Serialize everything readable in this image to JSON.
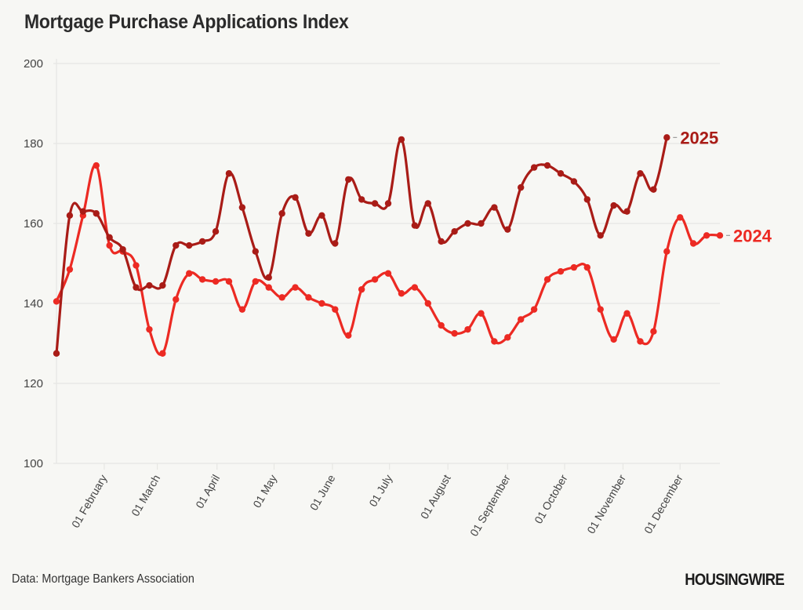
{
  "title": "Mortgage Purchase Applications Index",
  "source": "Data: Mortgage Bankers Association",
  "logo": "HOUSINGWIRE",
  "colors": {
    "series_2025": "#a91c17",
    "series_2024": "#ec2a23",
    "background": "#f7f7f4",
    "grid": "#e6e6e3"
  },
  "chart_data": {
    "type": "line",
    "title": "Mortgage Purchase Applications Index",
    "xlabel": "",
    "ylabel": "",
    "ylim": [
      100,
      200
    ],
    "yticks": [
      100,
      120,
      140,
      160,
      180,
      200
    ],
    "x_week_range": [
      1,
      51
    ],
    "xtick_labels": [
      "01 February",
      "01 March",
      "01 April",
      "01 May",
      "01 June",
      "01 July",
      "01 August",
      "01 September",
      "01 October",
      "01 November",
      "01 December"
    ],
    "xtick_weeks": [
      4.6,
      8.6,
      13.1,
      17.4,
      21.8,
      26.1,
      30.5,
      35,
      39.3,
      43.7,
      48
    ],
    "grid": true,
    "legend": "end-of-line labels",
    "series": [
      {
        "name": "2025",
        "color": "#a91c17",
        "values": [
          127.5,
          162,
          163,
          162.5,
          156.5,
          153.5,
          144,
          144.5,
          144.5,
          154.5,
          154.5,
          155.5,
          158,
          172.5,
          164,
          153,
          146.5,
          162.5,
          166.5,
          157.5,
          162,
          155,
          171,
          166,
          165,
          165,
          181,
          159.5,
          165,
          155.5,
          158,
          160,
          160,
          164,
          158.5,
          169,
          174,
          174.5,
          172.5,
          170.5,
          166,
          157,
          164.5,
          163,
          172.5,
          168.5,
          181.5
        ]
      },
      {
        "name": "2024",
        "color": "#ec2a23",
        "values": [
          140.5,
          148.5,
          162,
          174.5,
          154.5,
          153,
          149.5,
          133.5,
          127.5,
          141,
          147.5,
          146,
          145.5,
          145.5,
          138.5,
          145.5,
          144,
          141.5,
          144,
          141.5,
          140,
          138.5,
          132,
          143.5,
          146,
          147.5,
          142.5,
          144,
          140,
          134.5,
          132.5,
          133.5,
          137.5,
          130.5,
          131.5,
          136,
          138.5,
          146,
          148,
          149,
          149,
          138.5,
          131,
          137.5,
          130.5,
          133,
          153,
          161.5,
          155,
          157,
          157
        ]
      }
    ]
  }
}
